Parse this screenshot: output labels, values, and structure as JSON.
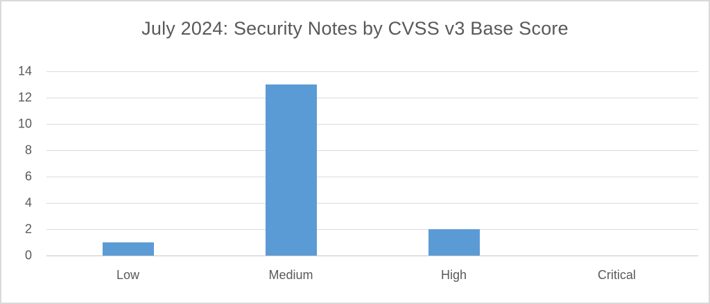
{
  "chart_data": {
    "type": "bar",
    "title": "July 2024: Security Notes by CVSS v3 Base Score",
    "categories": [
      "Low",
      "Medium",
      "High",
      "Critical"
    ],
    "values": [
      1,
      13,
      2,
      0
    ],
    "xlabel": "",
    "ylabel": "",
    "ylim": [
      0,
      14
    ],
    "ytick_step": 2,
    "yticks": [
      0,
      2,
      4,
      6,
      8,
      10,
      12,
      14
    ],
    "grid": true,
    "legend": "none",
    "bar_color": "#5B9BD5"
  },
  "colors": {
    "background": "#FFFFFF",
    "border": "#D9D9D9",
    "bar": "#5B9BD5",
    "title_text": "#595959",
    "axis_text": "#595959",
    "gridline": "#DBDBDB",
    "axis_line": "#C6C6C6"
  }
}
